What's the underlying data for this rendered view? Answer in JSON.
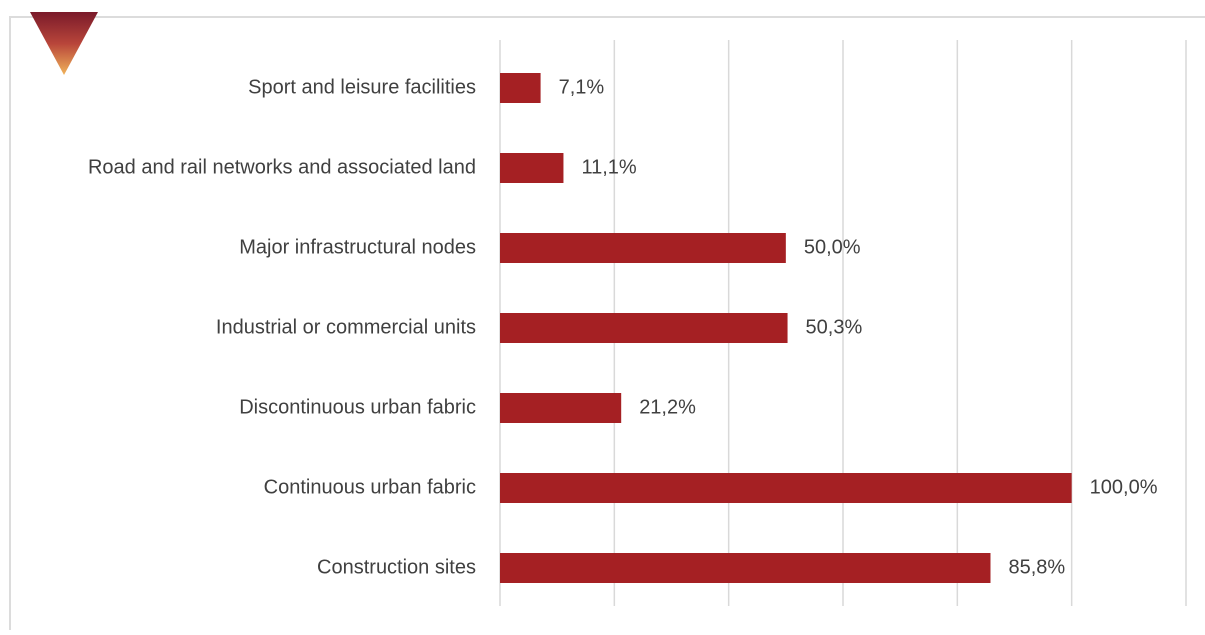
{
  "chart_data": {
    "type": "bar",
    "orientation": "horizontal",
    "categories": [
      "Sport and leisure facilities",
      "Road and rail networks and associated land",
      "Major infrastructural nodes",
      "Industrial or commercial units",
      "Discontinuous urban fabric",
      "Continuous urban fabric",
      "Construction sites"
    ],
    "values": [
      7.1,
      11.1,
      50.0,
      50.3,
      21.2,
      100.0,
      85.8
    ],
    "value_labels": [
      "7,1%",
      "11,1%",
      "50,0%",
      "50,3%",
      "21,2%",
      "100,0%",
      "85,8%"
    ],
    "color": "#a52023",
    "xlim": [
      0,
      120
    ],
    "xticks": [
      0,
      20,
      40,
      60,
      80,
      100,
      120
    ],
    "grid": true
  }
}
